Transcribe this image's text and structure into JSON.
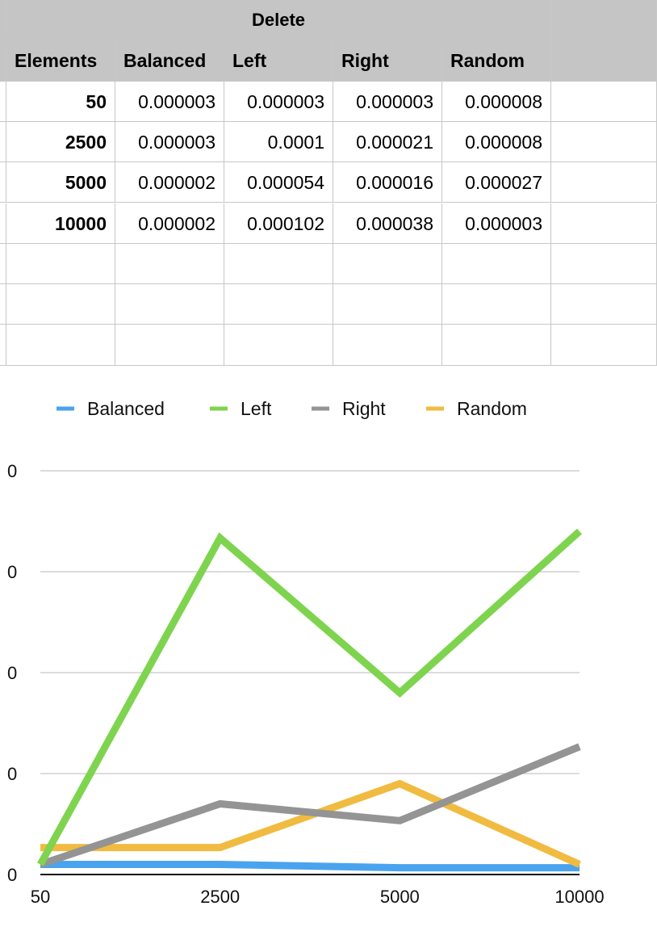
{
  "table": {
    "title": "Delete",
    "headers": [
      "Elements",
      "Balanced",
      "Left",
      "Right",
      "Random"
    ],
    "rows": [
      [
        "50",
        "0.000003",
        "0.000003",
        "0.000003",
        "0.000008"
      ],
      [
        "2500",
        "0.000003",
        "0.0001",
        "0.000021",
        "0.000008"
      ],
      [
        "5000",
        "0.000002",
        "0.000054",
        "0.000016",
        "0.000027"
      ],
      [
        "10000",
        "0.000002",
        "0.000102",
        "0.000038",
        "0.000003"
      ]
    ],
    "empty_rows": 3
  },
  "chart_data": {
    "type": "line",
    "categories": [
      "50",
      "2500",
      "5000",
      "10000"
    ],
    "series": [
      {
        "name": "Balanced",
        "color": "#4aa3ee",
        "values": [
          3e-06,
          3e-06,
          2e-06,
          2e-06
        ]
      },
      {
        "name": "Left",
        "color": "#7fd44f",
        "values": [
          3e-06,
          0.0001,
          5.4e-05,
          0.000102
        ]
      },
      {
        "name": "Right",
        "color": "#949494",
        "values": [
          3e-06,
          2.1e-05,
          1.6e-05,
          3.8e-05
        ]
      },
      {
        "name": "Random",
        "color": "#f0bb40",
        "values": [
          8e-06,
          8e-06,
          2.7e-05,
          3e-06
        ]
      }
    ],
    "y_tick_labels": [
      "0",
      "0",
      "0",
      "0",
      "0"
    ],
    "ylim": [
      0,
      0.00012
    ],
    "grid": true,
    "legend": "top"
  }
}
